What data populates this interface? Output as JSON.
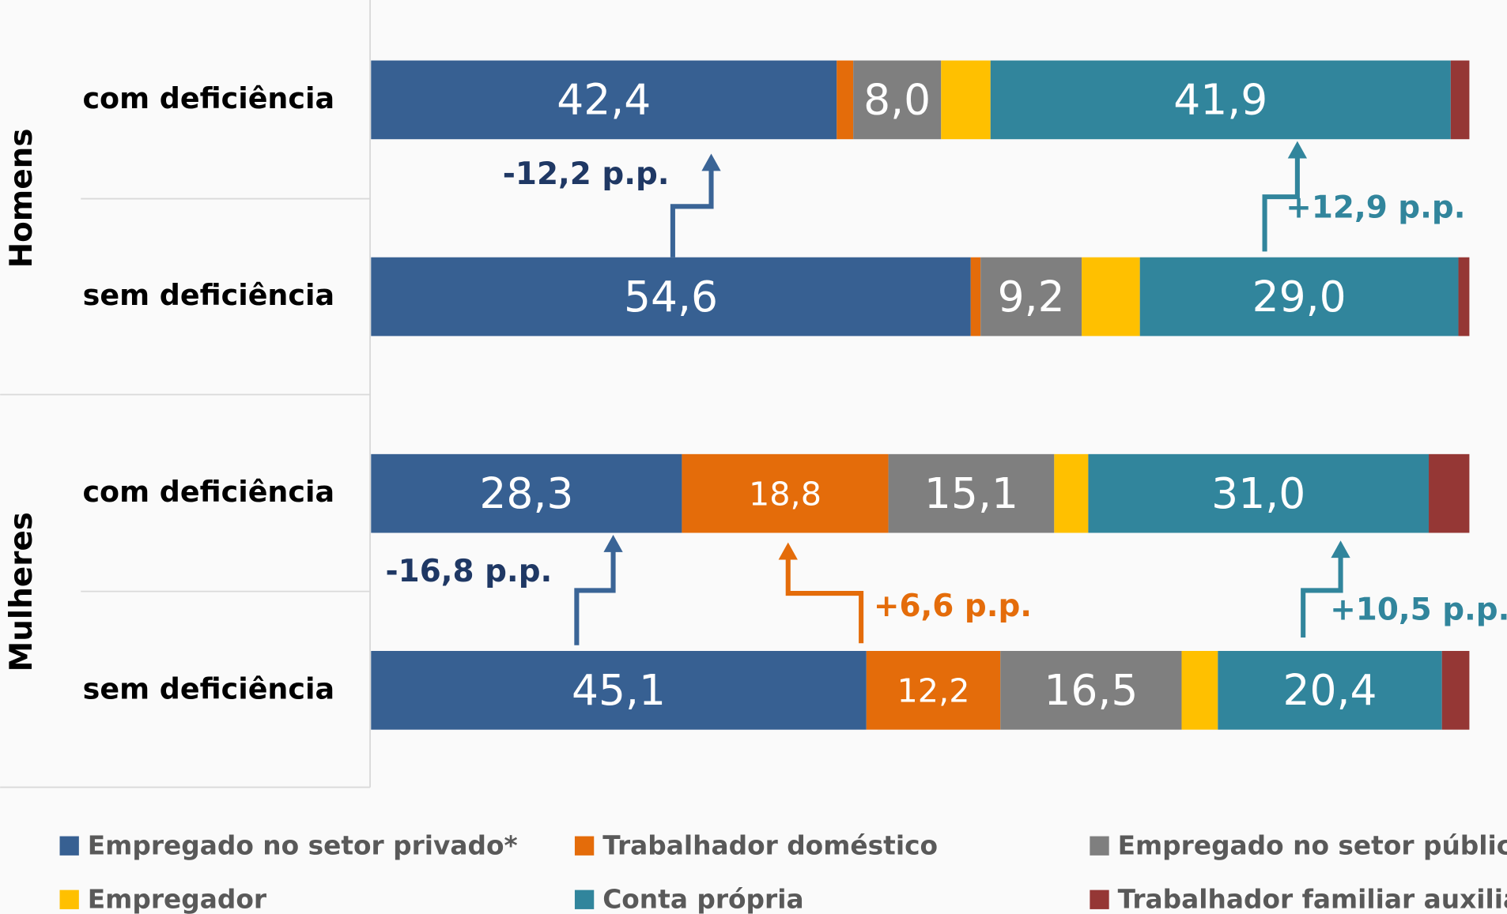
{
  "chart_data": {
    "type": "stacked-bar-horizontal",
    "groups": [
      "Homens",
      "Mulheres"
    ],
    "categories": [
      "com deficiência",
      "sem deficiência",
      "com deficiência",
      "sem deficiência"
    ],
    "xlim": [
      0,
      100
    ],
    "series": [
      {
        "name": "Empregado no setor privado*",
        "color": "#376092",
        "values": [
          42.4,
          54.6,
          28.3,
          45.1
        ],
        "value_labels": [
          "42,4",
          "54,6",
          "28,3",
          "45,1"
        ]
      },
      {
        "name": "Trabalhador doméstico",
        "color": "#e46c0a",
        "values": [
          1.5,
          0.9,
          18.8,
          12.2
        ],
        "value_labels": [
          null,
          null,
          "18,8",
          "12,2"
        ]
      },
      {
        "name": "Empregado no setor público",
        "color": "#7f7f7f",
        "values": [
          8.0,
          9.2,
          15.1,
          16.5
        ],
        "value_labels": [
          "8,0",
          "9,2",
          "15,1",
          "16,5"
        ]
      },
      {
        "name": "Empregador",
        "color": "#ffc000",
        "values": [
          4.5,
          5.3,
          3.1,
          3.3
        ],
        "value_labels": [
          null,
          null,
          null,
          null
        ]
      },
      {
        "name": "Conta própria",
        "color": "#31859c",
        "values": [
          41.9,
          29.0,
          31.0,
          20.4
        ],
        "value_labels": [
          "41,9",
          "29,0",
          "31,0",
          "20,4"
        ]
      },
      {
        "name": "Trabalhador familiar auxiliar",
        "color": "#953735",
        "values": [
          1.7,
          1.0,
          3.7,
          2.5
        ],
        "value_labels": [
          null,
          null,
          null,
          null
        ]
      }
    ],
    "annotations": [
      "-12,2 p.p.",
      "+12,9 p.p.",
      "-16,8 p.p.",
      "+6,6 p.p.",
      "+10,5 p.p."
    ]
  }
}
